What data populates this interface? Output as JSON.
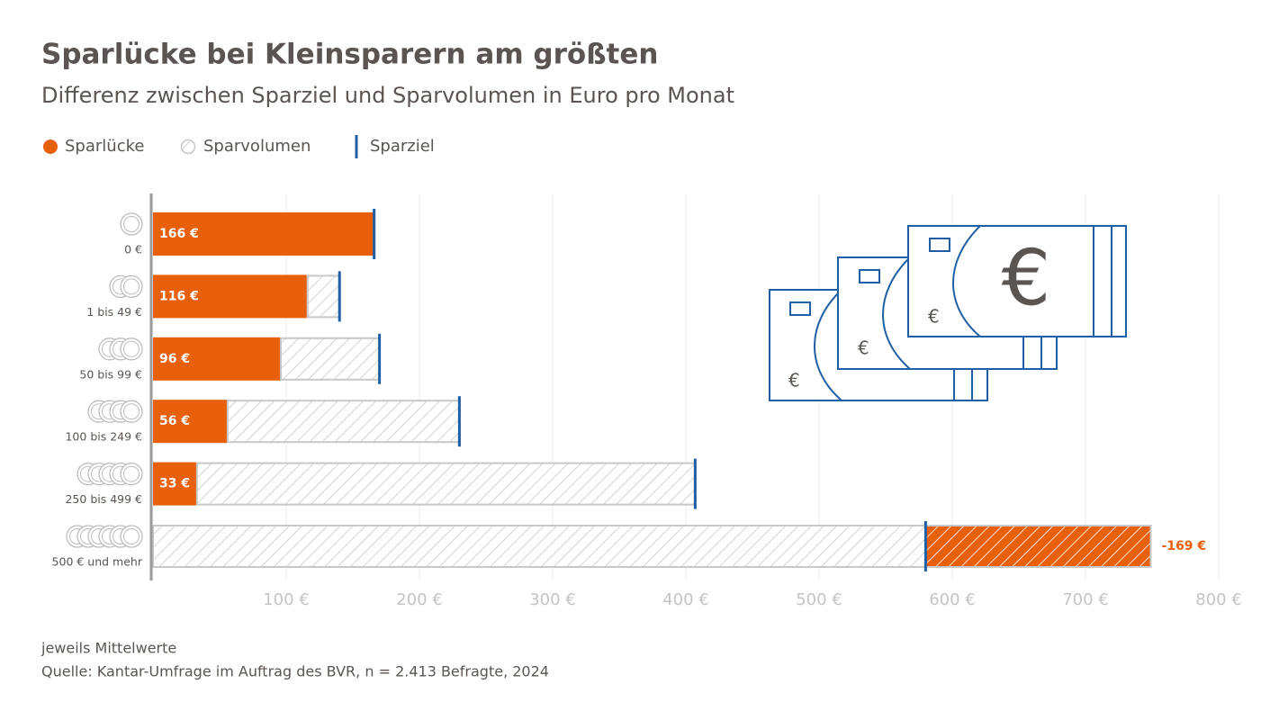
{
  "chart_data": {
    "type": "bar",
    "orientation": "horizontal",
    "title": "Sparlücke bei Kleinsparern am größten",
    "subtitle": "Differenz zwischen Sparziel und Sparvolumen in Euro pro Monat",
    "categories": [
      "0 €",
      "1 bis 49 €",
      "50 bis 99 €",
      "100 bis 249 €",
      "250 bis 499 €",
      "500 € und mehr"
    ],
    "series": [
      {
        "name": "Sparlücke",
        "color": "#e8600c",
        "values": [
          166,
          116,
          96,
          56,
          33,
          -169
        ],
        "value_labels": [
          "166 €",
          "116 €",
          "96 €",
          "56 €",
          "33 €",
          "-169 €"
        ]
      },
      {
        "name": "Sparvolumen",
        "color": "#c8c8c8",
        "values": [
          0,
          24,
          74,
          174,
          374,
          749
        ]
      }
    ],
    "target": {
      "name": "Sparziel",
      "color": "#1f5fa6",
      "values": [
        166,
        140,
        170,
        230,
        407,
        580
      ]
    },
    "xlim": [
      0,
      800
    ],
    "xticks": [
      {
        "value": 100,
        "label": "100 €"
      },
      {
        "value": 200,
        "label": "200 €"
      },
      {
        "value": 300,
        "label": "300 €"
      },
      {
        "value": 400,
        "label": "400 €"
      },
      {
        "value": 500,
        "label": "500 €"
      },
      {
        "value": 600,
        "label": "600 €"
      },
      {
        "value": 700,
        "label": "700 €"
      },
      {
        "value": 800,
        "label": "800 €"
      }
    ],
    "grid": true,
    "notes": [
      "jeweils Mittelwerte",
      "Quelle: Kantar-Umfrage im Auftrag des BVR, n = 2.413 Befragte, 2024"
    ]
  }
}
